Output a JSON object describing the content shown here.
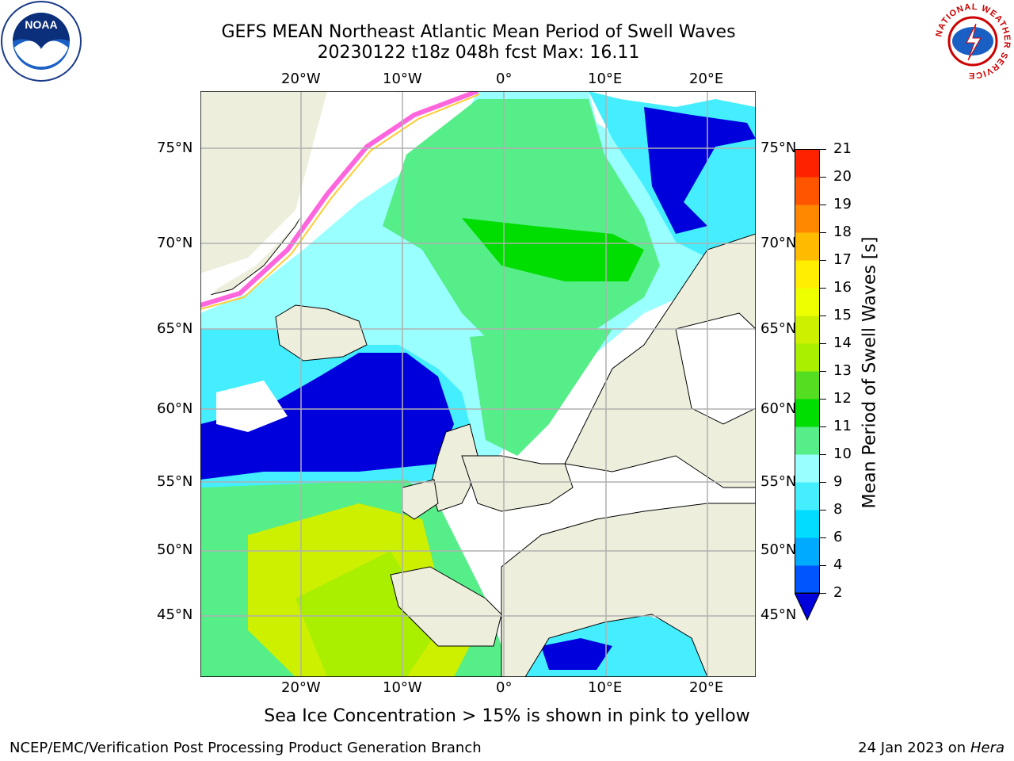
{
  "header": {
    "title_line1": "GEFS MEAN Northeast Atlantic Mean Period of Swell Waves",
    "title_line2": "20230122 t18z 048h fcst   Max: 16.11"
  },
  "map": {
    "lon_labels": [
      "20°W",
      "10°W",
      "0°",
      "10°E",
      "20°E"
    ],
    "lat_labels": [
      "75°N",
      "70°N",
      "65°N",
      "60°N",
      "55°N",
      "50°N",
      "45°N"
    ]
  },
  "colorbar": {
    "title": "Mean Period of Swell Waves [s]",
    "ticks": [
      "2",
      "4",
      "6",
      "8",
      "9",
      "10",
      "11",
      "12",
      "13",
      "14",
      "15",
      "16",
      "17",
      "18",
      "19",
      "20",
      "21"
    ],
    "colors": [
      "#0055ff",
      "#00aaff",
      "#00ddff",
      "#44eeff",
      "#99ffff",
      "#55ee88",
      "#00dd00",
      "#55dd22",
      "#aaee00",
      "#ccf000",
      "#eeff00",
      "#ffee00",
      "#ffbb00",
      "#ff8800",
      "#ff5500",
      "#ff2200"
    ],
    "extend_color": "#0000dd"
  },
  "caption": "Sea Ice Concentration > 15% is shown in pink to yellow",
  "footer": {
    "left": "NCEP/EMC/Verification Post Processing Product Generation Branch",
    "right_date": "24 Jan 2023 on ",
    "right_host": "Hera"
  },
  "logos": {
    "left": "NOAA",
    "right": "NATIONAL WEATHER SERVICE"
  }
}
